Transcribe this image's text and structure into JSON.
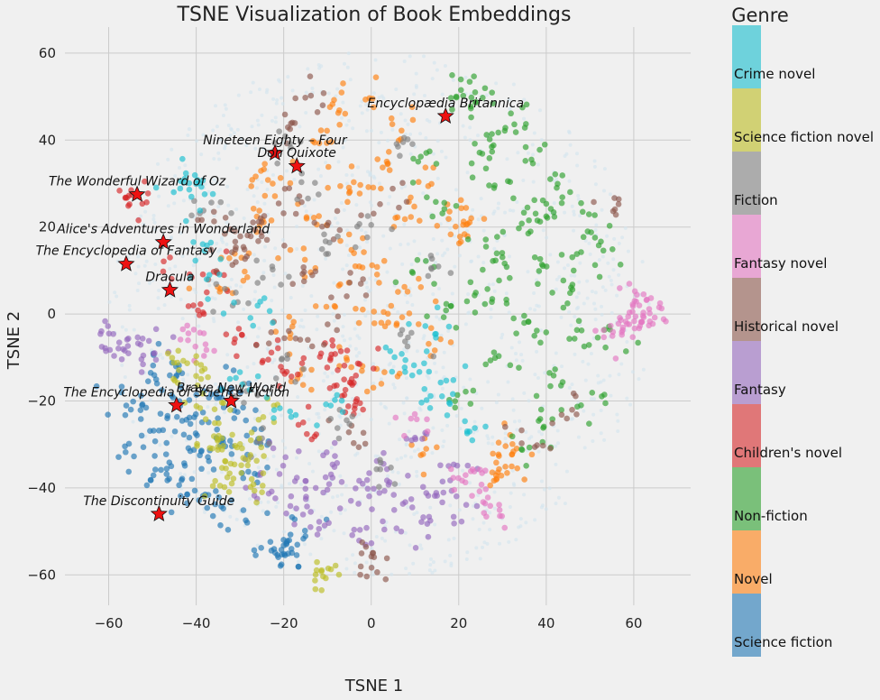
{
  "chart_data": {
    "type": "scatter",
    "title": "TSNE Visualization of Book Embeddings",
    "xlabel": "TSNE 1",
    "ylabel": "TSNE 2",
    "xlim": [
      -70,
      73
    ],
    "ylim": [
      -67,
      66
    ],
    "xticks": [
      -60,
      -40,
      -20,
      0,
      20,
      40,
      60
    ],
    "yticks": [
      -60,
      -40,
      -20,
      0,
      20,
      40,
      60
    ],
    "grid": true,
    "background_color": "#d2e4ee",
    "colorbar": {
      "title": "Genre",
      "categories": [
        {
          "name": "Science fiction",
          "color": "#1f77b4"
        },
        {
          "name": "Novel",
          "color": "#ff7f0e"
        },
        {
          "name": "Non-fiction",
          "color": "#2ca02c"
        },
        {
          "name": "Children's novel",
          "color": "#d62728"
        },
        {
          "name": "Fantasy",
          "color": "#9467bd"
        },
        {
          "name": "Historical novel",
          "color": "#8c564b"
        },
        {
          "name": "Fantasy novel",
          "color": "#e377c2"
        },
        {
          "name": "Fiction",
          "color": "#7f7f7f"
        },
        {
          "name": "Science fiction novel",
          "color": "#bcbd22"
        },
        {
          "name": "Crime novel",
          "color": "#17becf"
        }
      ]
    },
    "annotations": [
      {
        "label": "Encyclopædia Britannica",
        "x": 17,
        "y": 45.5
      },
      {
        "label": "Nineteen Eighty – Four",
        "x": -22,
        "y": 37
      },
      {
        "label": "Don Quixote",
        "x": -17,
        "y": 34
      },
      {
        "label": "The Wonderful Wizard of Oz",
        "x": -53.5,
        "y": 27.5
      },
      {
        "label": "Alice's Adventures in Wonderland",
        "x": -47.5,
        "y": 16.5
      },
      {
        "label": "The Encyclopedia of Fantasy",
        "x": -56,
        "y": 11.5
      },
      {
        "label": "Dracula",
        "x": -46,
        "y": 5.5
      },
      {
        "label": "Brave New World",
        "x": -32,
        "y": -20
      },
      {
        "label": "The Encyclopedia of Science Fiction",
        "x": -44.5,
        "y": -21
      },
      {
        "label": "The Discontinuity Guide",
        "x": -48.5,
        "y": -46
      }
    ],
    "clusters": [
      {
        "genre": "Science fiction",
        "points": [
          [
            -45,
            -23
          ],
          [
            -40,
            -20
          ],
          [
            -50,
            -28
          ],
          [
            -35,
            -27
          ],
          [
            -42,
            -32
          ],
          [
            -38,
            -35
          ],
          [
            -48,
            -18
          ],
          [
            -30,
            -24
          ],
          [
            -44,
            -14
          ],
          [
            -52,
            -22
          ],
          [
            -36,
            -18
          ],
          [
            -41,
            -26
          ],
          [
            -46,
            -35
          ],
          [
            -33,
            -31
          ],
          [
            -39,
            -40
          ],
          [
            -55,
            -30
          ],
          [
            -27,
            -37
          ],
          [
            -43,
            -42
          ],
          [
            -21,
            -54
          ],
          [
            -20,
            -56
          ],
          [
            -22,
            -53
          ],
          [
            -19,
            -55
          ],
          [
            -29,
            -46
          ],
          [
            -15,
            -49
          ],
          [
            -57,
            -19
          ],
          [
            -32,
            -15
          ],
          [
            -37,
            -44
          ],
          [
            -49,
            -38
          ],
          [
            -26,
            -28
          ],
          [
            -50,
            -12
          ]
        ]
      },
      {
        "genre": "Novel",
        "points": [
          [
            -8,
            30
          ],
          [
            -3,
            28
          ],
          [
            -14,
            22
          ],
          [
            -6,
            15
          ],
          [
            2,
            10
          ],
          [
            -10,
            5
          ],
          [
            5,
            -2
          ],
          [
            0,
            0
          ],
          [
            -17,
            12
          ],
          [
            -21,
            32
          ],
          [
            -12,
            40
          ],
          [
            -2,
            50
          ],
          [
            3,
            35
          ],
          [
            8,
            20
          ],
          [
            -25,
            22
          ],
          [
            20,
            20
          ],
          [
            22,
            22
          ],
          [
            21,
            18
          ],
          [
            30,
            -36
          ],
          [
            31,
            -33
          ],
          [
            29,
            -38
          ],
          [
            -5,
            -10
          ],
          [
            4,
            -15
          ],
          [
            -28,
            30
          ],
          [
            10,
            5
          ],
          [
            -16,
            -15
          ],
          [
            15,
            -5
          ],
          [
            12,
            30
          ],
          [
            -30,
            12
          ],
          [
            6,
            44
          ],
          [
            32,
            -30
          ],
          [
            -35,
            5
          ],
          [
            -19,
            -4
          ],
          [
            -8,
            48
          ],
          [
            13,
            -30
          ]
        ]
      },
      {
        "genre": "Non-fiction",
        "points": [
          [
            22,
            50
          ],
          [
            20,
            48
          ],
          [
            24,
            51
          ],
          [
            30,
            30
          ],
          [
            35,
            20
          ],
          [
            40,
            10
          ],
          [
            45,
            5
          ],
          [
            50,
            20
          ],
          [
            38,
            -5
          ],
          [
            44,
            -15
          ],
          [
            32,
            0
          ],
          [
            28,
            -10
          ],
          [
            26,
            15
          ],
          [
            42,
            30
          ],
          [
            36,
            38
          ],
          [
            25,
            35
          ],
          [
            48,
            -5
          ],
          [
            55,
            15
          ],
          [
            15,
            25
          ],
          [
            12,
            35
          ],
          [
            18,
            0
          ],
          [
            40,
            -25
          ],
          [
            35,
            -30
          ],
          [
            50,
            -20
          ],
          [
            33,
            45
          ],
          [
            10,
            10
          ],
          [
            20,
            -20
          ],
          [
            45,
            25
          ],
          [
            55,
            -5
          ],
          [
            30,
            10
          ],
          [
            38,
            22
          ],
          [
            46,
            12
          ],
          [
            28,
            40
          ],
          [
            24,
            5
          ]
        ]
      },
      {
        "genre": "Children's novel",
        "points": [
          [
            -54,
            27
          ],
          [
            -55,
            28
          ],
          [
            -8,
            -12
          ],
          [
            -5,
            -15
          ],
          [
            -10,
            -10
          ],
          [
            -2,
            -13
          ],
          [
            -6,
            -18
          ],
          [
            -35,
            8
          ],
          [
            -40,
            0
          ],
          [
            -25,
            -10
          ],
          [
            -30,
            -5
          ],
          [
            -45,
            10
          ],
          [
            -15,
            -27
          ],
          [
            -20,
            -15
          ],
          [
            -3,
            -22
          ]
        ]
      },
      {
        "genre": "Fantasy",
        "points": [
          [
            -15,
            -40
          ],
          [
            -10,
            -38
          ],
          [
            -5,
            -42
          ],
          [
            -20,
            -35
          ],
          [
            0,
            -40
          ],
          [
            5,
            -45
          ],
          [
            10,
            -43
          ],
          [
            -12,
            -48
          ],
          [
            -8,
            -32
          ],
          [
            2,
            -35
          ],
          [
            15,
            -40
          ],
          [
            20,
            -45
          ],
          [
            -18,
            -45
          ],
          [
            -25,
            -40
          ],
          [
            -58,
            -8
          ],
          [
            -56,
            -6
          ],
          [
            -60,
            -5
          ],
          [
            -52,
            -10
          ],
          [
            -50,
            -4
          ],
          [
            -3,
            -52
          ],
          [
            8,
            -30
          ],
          [
            12,
            -50
          ],
          [
            18,
            -35
          ]
        ]
      },
      {
        "genre": "Historical novel",
        "points": [
          [
            -30,
            15
          ],
          [
            -26,
            18
          ],
          [
            -34,
            12
          ],
          [
            -20,
            25
          ],
          [
            -15,
            8
          ],
          [
            -22,
            -5
          ],
          [
            -12,
            -5
          ],
          [
            -5,
            5
          ],
          [
            -9,
            20
          ],
          [
            -4,
            -28
          ],
          [
            0,
            -58
          ],
          [
            -1,
            -56
          ],
          [
            45,
            -22
          ],
          [
            55,
            25
          ],
          [
            -18,
            44
          ],
          [
            -12,
            50
          ],
          [
            36,
            -30
          ],
          [
            -28,
            22
          ],
          [
            5,
            26
          ],
          [
            -36,
            20
          ]
        ]
      },
      {
        "genre": "Fantasy novel",
        "points": [
          [
            60,
            0
          ],
          [
            62,
            2
          ],
          [
            58,
            -2
          ],
          [
            63,
            -1
          ],
          [
            59,
            4
          ],
          [
            57,
            -5
          ],
          [
            61,
            -3
          ],
          [
            64,
            1
          ],
          [
            25,
            -42
          ],
          [
            28,
            -45
          ],
          [
            20,
            -38
          ],
          [
            24,
            -35
          ],
          [
            -42,
            -5
          ],
          [
            -38,
            -8
          ],
          [
            10,
            -25
          ]
        ]
      },
      {
        "genre": "Fiction",
        "points": [
          [
            -18,
            -10
          ],
          [
            -22,
            8
          ],
          [
            -10,
            15
          ],
          [
            0,
            20
          ],
          [
            8,
            -5
          ],
          [
            -28,
            -20
          ],
          [
            -32,
            4
          ],
          [
            -14,
            30
          ],
          [
            6,
            40
          ],
          [
            -25,
            -30
          ],
          [
            15,
            10
          ],
          [
            -6,
            -25
          ],
          [
            -20,
            40
          ],
          [
            4,
            -35
          ],
          [
            -38,
            25
          ]
        ]
      },
      {
        "genre": "Science fiction novel",
        "points": [
          [
            -37,
            -30
          ],
          [
            -33,
            -34
          ],
          [
            -30,
            -30
          ],
          [
            -35,
            -25
          ],
          [
            -28,
            -32
          ],
          [
            -31,
            -38
          ],
          [
            -40,
            -13
          ],
          [
            -42,
            -16
          ],
          [
            -45,
            -10
          ],
          [
            -26,
            -40
          ],
          [
            -11,
            -59
          ],
          [
            -12,
            -60
          ],
          [
            -24,
            -22
          ],
          [
            -34,
            -38
          ],
          [
            -38,
            -22
          ]
        ]
      },
      {
        "genre": "Crime novel",
        "points": [
          [
            -42,
            30
          ],
          [
            -43,
            32
          ],
          [
            -40,
            28
          ],
          [
            -36,
            5
          ],
          [
            -25,
            0
          ],
          [
            -20,
            -22
          ],
          [
            15,
            -20
          ],
          [
            18,
            -18
          ],
          [
            -30,
            -15
          ],
          [
            5,
            -10
          ],
          [
            12,
            -12
          ],
          [
            -8,
            -22
          ],
          [
            14,
            -3
          ],
          [
            -38,
            14
          ],
          [
            22,
            -25
          ]
        ]
      }
    ]
  }
}
